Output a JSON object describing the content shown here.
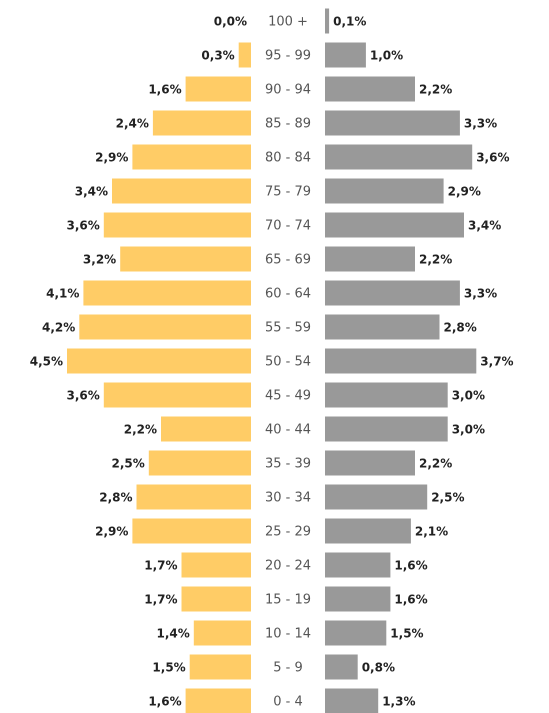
{
  "chart_data": {
    "type": "bar",
    "orientation": "horizontal",
    "layout": "population-pyramid",
    "categories": [
      "100 +",
      "95 - 99",
      "90 - 94",
      "85 - 89",
      "80 - 84",
      "75 - 79",
      "70 - 74",
      "65 - 69",
      "60 - 64",
      "55 - 59",
      "50 - 54",
      "45 - 49",
      "40 - 44",
      "35 - 39",
      "30 - 34",
      "25 - 29",
      "20 - 24",
      "15 - 19",
      "10 - 14",
      "5 - 9",
      "0 - 4"
    ],
    "series": [
      {
        "side": "left",
        "color": "#FFCC66",
        "values": [
          0.0,
          0.3,
          1.6,
          2.4,
          2.9,
          3.4,
          3.6,
          3.2,
          4.1,
          4.2,
          4.5,
          3.6,
          2.2,
          2.5,
          2.8,
          2.9,
          1.7,
          1.7,
          1.4,
          1.5,
          1.6
        ],
        "labels": [
          "0,0%",
          "0,3%",
          "1,6%",
          "2,4%",
          "2,9%",
          "3,4%",
          "3,6%",
          "3,2%",
          "4,1%",
          "4,2%",
          "4,5%",
          "3,6%",
          "2,2%",
          "2,5%",
          "2,8%",
          "2,9%",
          "1,7%",
          "1,7%",
          "1,4%",
          "1,5%",
          "1,6%"
        ]
      },
      {
        "side": "right",
        "color": "#999999",
        "values": [
          0.1,
          1.0,
          2.2,
          3.3,
          3.6,
          2.9,
          3.4,
          2.2,
          3.3,
          2.8,
          3.7,
          3.0,
          3.0,
          2.2,
          2.5,
          2.1,
          1.6,
          1.6,
          1.5,
          0.8,
          1.3
        ],
        "labels": [
          "0,1%",
          "1,0%",
          "2,2%",
          "3,3%",
          "3,6%",
          "2,9%",
          "3,4%",
          "2,2%",
          "3,3%",
          "2,8%",
          "3,7%",
          "3,0%",
          "3,0%",
          "2,2%",
          "2,5%",
          "2,1%",
          "1,6%",
          "1,6%",
          "1,5%",
          "0,8%",
          "1,3%"
        ]
      }
    ],
    "xlim": [
      0,
      4.5
    ],
    "grid": false,
    "legend": "none"
  }
}
